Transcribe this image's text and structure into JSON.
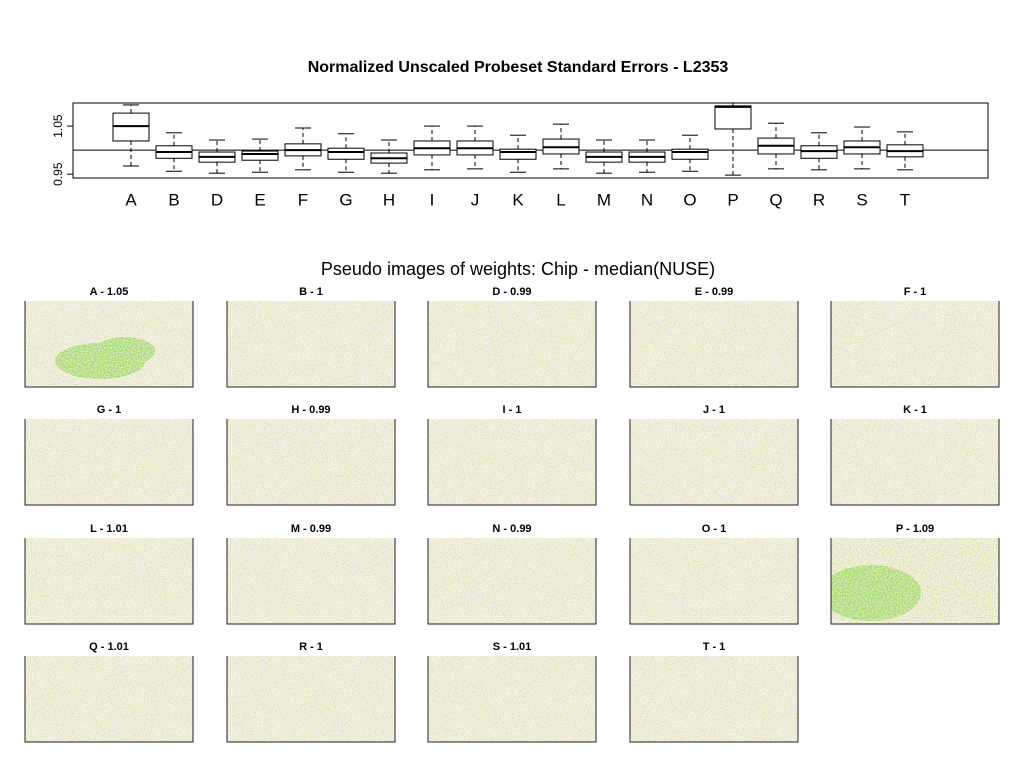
{
  "chart_data": [
    {
      "type": "box",
      "title": "Normalized Unscaled Probeset Standard Errors -  L2353",
      "categories": [
        "A",
        "B",
        "D",
        "E",
        "F",
        "G",
        "H",
        "I",
        "J",
        "K",
        "L",
        "M",
        "N",
        "O",
        "P",
        "Q",
        "R",
        "S",
        "T"
      ],
      "boxes": [
        {
          "whislo": 0.967,
          "q1": 1.019,
          "med": 1.05,
          "q3": 1.077,
          "whishi": 1.094
        },
        {
          "whislo": 0.956,
          "q1": 0.983,
          "med": 0.996,
          "q3": 1.009,
          "whishi": 1.036
        },
        {
          "whislo": 0.952,
          "q1": 0.975,
          "med": 0.986,
          "q3": 0.996,
          "whishi": 1.021
        },
        {
          "whislo": 0.954,
          "q1": 0.979,
          "med": 0.992,
          "q3": 0.998,
          "whishi": 1.023
        },
        {
          "whislo": 0.959,
          "q1": 0.988,
          "med": 1.0,
          "q3": 1.013,
          "whishi": 1.046
        },
        {
          "whislo": 0.954,
          "q1": 0.981,
          "med": 0.996,
          "q3": 1.004,
          "whishi": 1.034
        },
        {
          "whislo": 0.952,
          "q1": 0.973,
          "med": 0.983,
          "q3": 0.994,
          "whishi": 1.021
        },
        {
          "whislo": 0.959,
          "q1": 0.99,
          "med": 1.004,
          "q3": 1.019,
          "whishi": 1.05
        },
        {
          "whislo": 0.961,
          "q1": 0.99,
          "med": 1.004,
          "q3": 1.019,
          "whishi": 1.05
        },
        {
          "whislo": 0.954,
          "q1": 0.981,
          "med": 0.996,
          "q3": 1.002,
          "whishi": 1.031
        },
        {
          "whislo": 0.961,
          "q1": 0.992,
          "med": 1.006,
          "q3": 1.023,
          "whishi": 1.054
        },
        {
          "whislo": 0.952,
          "q1": 0.975,
          "med": 0.986,
          "q3": 0.996,
          "whishi": 1.021
        },
        {
          "whislo": 0.954,
          "q1": 0.975,
          "med": 0.986,
          "q3": 0.996,
          "whishi": 1.021
        },
        {
          "whislo": 0.956,
          "q1": 0.981,
          "med": 0.996,
          "q3": 1.002,
          "whishi": 1.031
        },
        {
          "whislo": 0.948,
          "q1": 1.044,
          "med": 1.09,
          "q3": 1.092,
          "whishi": 1.098
        },
        {
          "whislo": 0.961,
          "q1": 0.992,
          "med": 1.009,
          "q3": 1.025,
          "whishi": 1.056
        },
        {
          "whislo": 0.959,
          "q1": 0.983,
          "med": 0.998,
          "q3": 1.009,
          "whishi": 1.036
        },
        {
          "whislo": 0.961,
          "q1": 0.992,
          "med": 1.006,
          "q3": 1.019,
          "whishi": 1.048
        },
        {
          "whislo": 0.959,
          "q1": 0.986,
          "med": 0.998,
          "q3": 1.011,
          "whishi": 1.038
        }
      ],
      "ylim": [
        0.942,
        1.098
      ],
      "yticks": [
        0.95,
        1.05
      ],
      "reference_line": 1
    },
    {
      "type": "pseudo-image",
      "title": "Pseudo images of weights: Chip - median(NUSE)",
      "panels": [
        "A - 1.05",
        "B - 1",
        "D - 0.99",
        "E - 0.99",
        "F - 1",
        "G - 1",
        "H - 0.99",
        "I - 1",
        "J - 1",
        "K - 1",
        "L - 1.01",
        "M - 0.99",
        "N - 0.99",
        "O - 1",
        "P - 1.09",
        "Q - 1.01",
        "R - 1",
        "S - 1.01",
        "T - 1"
      ]
    }
  ]
}
